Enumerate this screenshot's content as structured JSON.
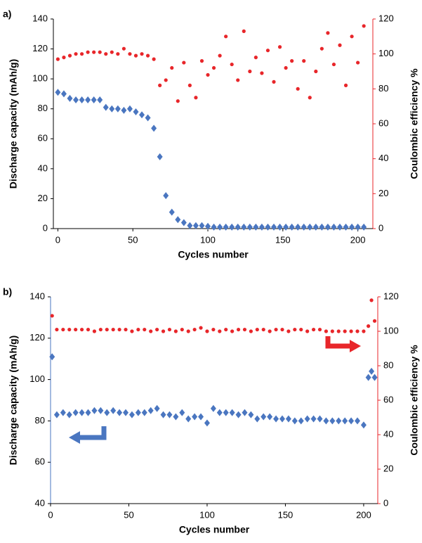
{
  "chart_data": [
    {
      "type": "scatter",
      "panel_label": "a)",
      "x_label": "Cycles number",
      "y_label": "Discharge capacity (mAh/g)",
      "y2_label": "Coulombic efficiency %",
      "xlim": [
        -3,
        210
      ],
      "xticks": [
        0,
        50,
        100,
        150,
        200
      ],
      "ylim": [
        0,
        140
      ],
      "yticks": [
        0,
        20,
        40,
        60,
        80,
        100,
        120,
        140
      ],
      "y2lim": [
        0,
        120
      ],
      "y2ticks": [
        0,
        20,
        40,
        60,
        80,
        100,
        120
      ],
      "x": [
        0,
        4,
        8,
        12,
        16,
        20,
        24,
        28,
        32,
        36,
        40,
        44,
        48,
        52,
        56,
        60,
        64,
        68,
        72,
        76,
        80,
        84,
        88,
        92,
        96,
        100,
        104,
        108,
        112,
        116,
        120,
        124,
        128,
        132,
        136,
        140,
        144,
        148,
        152,
        156,
        160,
        164,
        168,
        172,
        176,
        180,
        184,
        188,
        192,
        196,
        200,
        204
      ],
      "series": [
        {
          "color": "#4a76c0",
          "marker": "diamond",
          "values": [
            91,
            90,
            87,
            86,
            86,
            86,
            86,
            86,
            81,
            80,
            80,
            79,
            80,
            78,
            76,
            74,
            67,
            48,
            22,
            11,
            6,
            4,
            2,
            2,
            2,
            1.5,
            1,
            1,
            1,
            1,
            1,
            1,
            1,
            1,
            1,
            1,
            1,
            1,
            1,
            1,
            1,
            1,
            1,
            1,
            1,
            1,
            1,
            1,
            1,
            1,
            1,
            1
          ]
        },
        {
          "color": "#e8262a",
          "marker": "circle",
          "axis": "y2",
          "values": [
            97,
            98,
            99,
            100,
            100,
            101,
            101,
            101,
            100,
            101,
            100,
            103,
            100,
            99,
            100,
            99,
            97,
            82,
            85,
            92,
            73,
            95,
            82,
            75,
            96,
            88,
            92,
            99,
            110,
            94,
            85,
            113,
            90,
            98,
            89,
            102,
            84,
            104,
            92,
            96,
            80,
            96,
            75,
            90,
            103,
            112,
            94,
            105,
            82,
            110,
            95,
            116
          ]
        }
      ]
    },
    {
      "type": "scatter",
      "panel_label": "b)",
      "x_label": "Cycles number",
      "y_label": "Discharge capacity (mAh/g)",
      "y2_label": "Coulombic efficiency %",
      "xlim": [
        0,
        209
      ],
      "xticks": [
        0,
        50,
        100,
        150,
        200
      ],
      "ylim": [
        40,
        140
      ],
      "yticks": [
        40,
        60,
        80,
        100,
        120,
        140
      ],
      "y2lim": [
        0,
        120
      ],
      "y2ticks": [
        0,
        20,
        40,
        60,
        80,
        100,
        120
      ],
      "x": [
        1,
        4,
        8,
        12,
        16,
        20,
        24,
        28,
        32,
        36,
        40,
        44,
        48,
        52,
        56,
        60,
        64,
        68,
        72,
        76,
        80,
        84,
        88,
        92,
        96,
        100,
        104,
        108,
        112,
        116,
        120,
        124,
        128,
        132,
        136,
        140,
        144,
        148,
        152,
        156,
        160,
        164,
        168,
        172,
        176,
        180,
        184,
        188,
        192,
        196,
        200,
        203,
        205,
        207
      ],
      "series": [
        {
          "color": "#4a76c0",
          "marker": "diamond",
          "values": [
            111,
            83,
            84,
            83,
            84,
            84,
            84,
            85,
            85,
            84,
            85,
            84,
            84,
            83,
            84,
            84,
            85,
            86,
            83,
            83,
            82,
            84,
            81,
            82,
            82,
            79,
            86,
            84,
            84,
            84,
            83,
            84,
            83,
            81,
            82,
            82,
            81,
            81,
            81,
            80,
            80,
            81,
            81,
            81,
            80,
            80,
            80,
            80,
            80,
            80,
            78,
            101,
            104,
            101
          ]
        },
        {
          "color": "#e8262a",
          "marker": "circle",
          "axis": "y2",
          "values": [
            109,
            101,
            101,
            101,
            101,
            101,
            101,
            100,
            101,
            101,
            101,
            101,
            101,
            100,
            101,
            101,
            100,
            101,
            100,
            101,
            100,
            101,
            100,
            101,
            102,
            100,
            101,
            100,
            101,
            100,
            101,
            101,
            100,
            101,
            101,
            100,
            101,
            101,
            100,
            101,
            101,
            100,
            101,
            101,
            100,
            100,
            100,
            100,
            100,
            100,
            100,
            103,
            118,
            106
          ]
        }
      ]
    }
  ]
}
